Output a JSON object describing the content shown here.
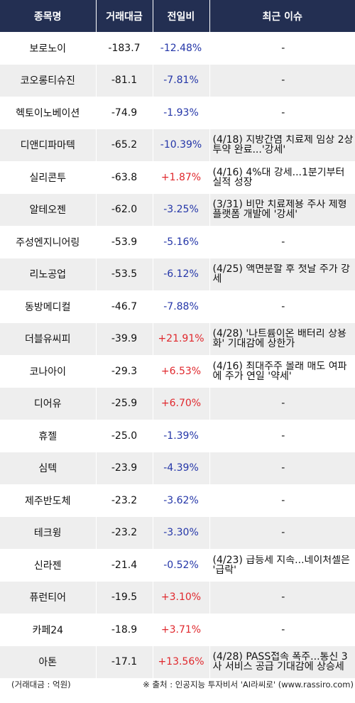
{
  "header": {
    "col_name": "종목명",
    "col_amount": "거래대금",
    "col_change": "전일비",
    "col_issue": "최근 이슈"
  },
  "colors": {
    "header_bg": "#232f52",
    "up": "#e0282d",
    "down": "#2436a8",
    "stripe": "#eeeeee"
  },
  "rows": [
    {
      "name": "보로노이",
      "amount": "-183.7",
      "change": "-12.48%",
      "dir": "down",
      "issue": "-"
    },
    {
      "name": "코오롱티슈진",
      "amount": "-81.1",
      "change": "-7.81%",
      "dir": "down",
      "issue": "-"
    },
    {
      "name": "헥토이노베이션",
      "amount": "-74.9",
      "change": "-1.93%",
      "dir": "down",
      "issue": "-"
    },
    {
      "name": "디앤디파마텍",
      "amount": "-65.2",
      "change": "-10.39%",
      "dir": "down",
      "issue": "(4/18) 지방간염 치료제 임상 2상 투약 완료...'강세'"
    },
    {
      "name": "실리콘투",
      "amount": "-63.8",
      "change": "+1.87%",
      "dir": "up",
      "issue": "(4/16) 4%대 강세...1분기부터 실적 성장"
    },
    {
      "name": "알테오젠",
      "amount": "-62.0",
      "change": "-3.25%",
      "dir": "down",
      "issue": "(3/31) 비만 치료제용 주사 제형 플랫폼 개발에 '강세'"
    },
    {
      "name": "주성엔지니어링",
      "amount": "-53.9",
      "change": "-5.16%",
      "dir": "down",
      "issue": "-"
    },
    {
      "name": "리노공업",
      "amount": "-53.5",
      "change": "-6.12%",
      "dir": "down",
      "issue": "(4/25) 액면분할 후 첫날 주가 강세"
    },
    {
      "name": "동방메디컬",
      "amount": "-46.7",
      "change": "-7.88%",
      "dir": "down",
      "issue": "-"
    },
    {
      "name": "더블유씨피",
      "amount": "-39.9",
      "change": "+21.91%",
      "dir": "up",
      "issue": "(4/28) '나트륨이온 배터리 상용화' 기대감에 상한가"
    },
    {
      "name": "코나아이",
      "amount": "-29.3",
      "change": "+6.53%",
      "dir": "up",
      "issue": "(4/16) 최대주주 몰래 매도 여파에 주가 연일 '약세'"
    },
    {
      "name": "디어유",
      "amount": "-25.9",
      "change": "+6.70%",
      "dir": "up",
      "issue": "-"
    },
    {
      "name": "휴젤",
      "amount": "-25.0",
      "change": "-1.39%",
      "dir": "down",
      "issue": "-"
    },
    {
      "name": "심텍",
      "amount": "-23.9",
      "change": "-4.39%",
      "dir": "down",
      "issue": "-"
    },
    {
      "name": "제주반도체",
      "amount": "-23.2",
      "change": "-3.62%",
      "dir": "down",
      "issue": "-"
    },
    {
      "name": "테크윙",
      "amount": "-23.2",
      "change": "-3.30%",
      "dir": "down",
      "issue": "-"
    },
    {
      "name": "신라젠",
      "amount": "-21.4",
      "change": "-0.52%",
      "dir": "down",
      "issue": "(4/23) 급등세 지속...네이처셀은 '급락'"
    },
    {
      "name": "퓨런티어",
      "amount": "-19.5",
      "change": "+3.10%",
      "dir": "up",
      "issue": "-"
    },
    {
      "name": "카페24",
      "amount": "-18.9",
      "change": "+3.71%",
      "dir": "up",
      "issue": "-"
    },
    {
      "name": "아톤",
      "amount": "-17.1",
      "change": "+13.56%",
      "dir": "up",
      "issue": "(4/28) PASS접속 폭주...통신 3사 서비스 공급 기대감에 상승세"
    }
  ],
  "footer": {
    "unit": "(거래대금 : 억원)",
    "source": "※ 출처 : 인공지능 투자비서 'AI라씨로' (www.rassiro.com)"
  }
}
